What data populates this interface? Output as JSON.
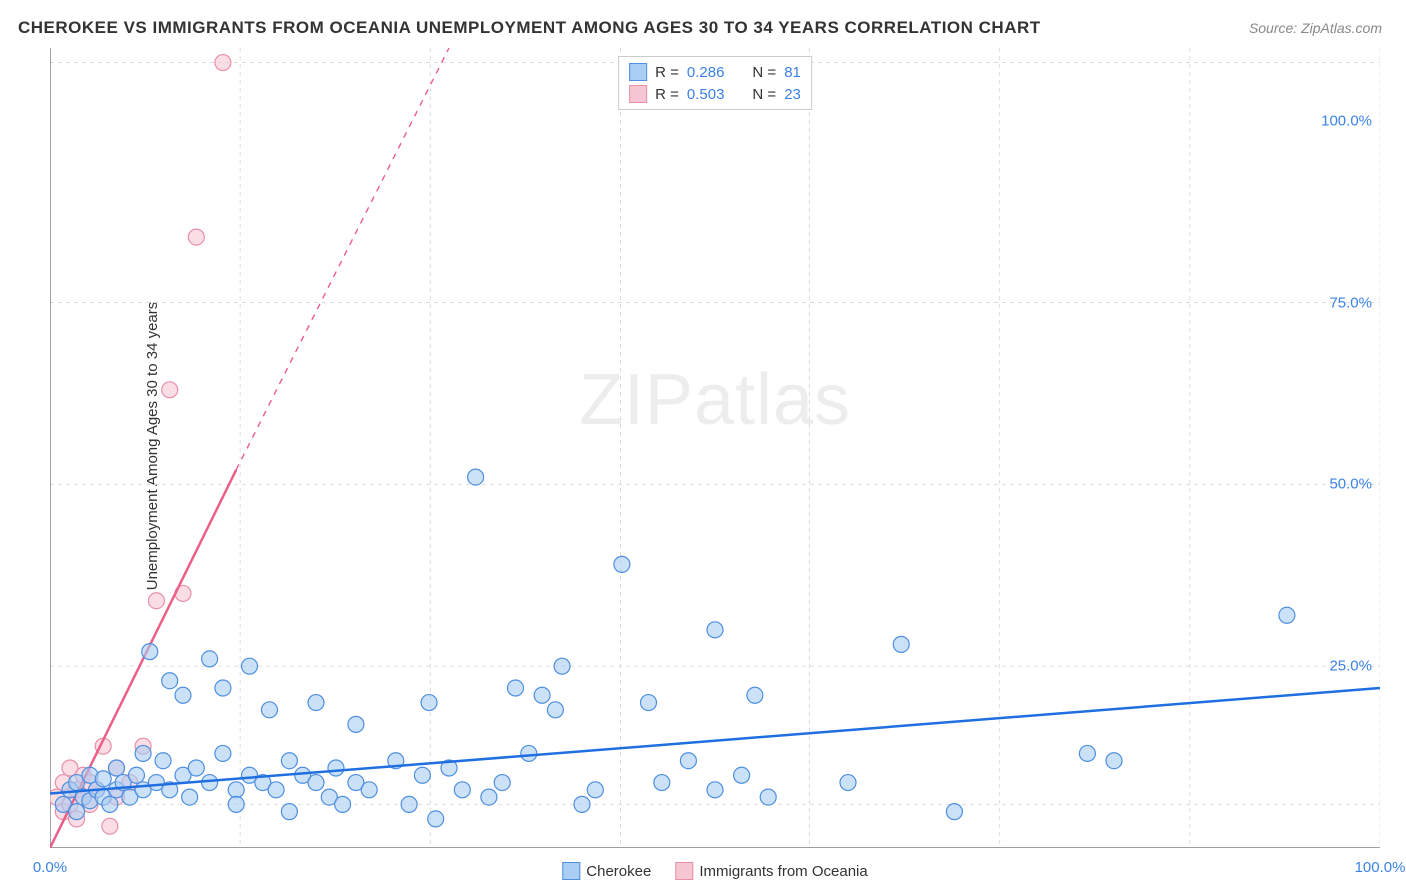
{
  "title": "CHEROKEE VS IMMIGRANTS FROM OCEANIA UNEMPLOYMENT AMONG AGES 30 TO 34 YEARS CORRELATION CHART",
  "source": "Source: ZipAtlas.com",
  "yaxis_label": "Unemployment Among Ages 30 to 34 years",
  "watermark": "ZIPatlas",
  "chart": {
    "type": "scatter",
    "xlim": [
      0,
      100
    ],
    "ylim": [
      0,
      110
    ],
    "xtick_labels": [
      {
        "v": 0,
        "label": "0.0%"
      },
      {
        "v": 100,
        "label": "100.0%"
      }
    ],
    "ytick_labels": [
      {
        "v": 25,
        "label": "25.0%"
      },
      {
        "v": 50,
        "label": "50.0%"
      },
      {
        "v": 75,
        "label": "75.0%"
      },
      {
        "v": 100,
        "label": "100.0%"
      }
    ],
    "grid_y": [
      6,
      25,
      50,
      75,
      108
    ],
    "grid_x": [
      14.3,
      28.6,
      42.9,
      57.1,
      71.4,
      85.7,
      100
    ],
    "grid_color": "#dddddd",
    "axis_color": "#666666",
    "background_color": "#ffffff",
    "tick_label_color": "#3b82e6",
    "marker_radius": 8,
    "marker_stroke_width": 1.2,
    "line_width_solid": 2.5,
    "line_width_trend": 1.4,
    "series": {
      "cherokee": {
        "label": "Cherokee",
        "fill": "#a9cdf3",
        "stroke": "#4f8fe0",
        "line_color": "#1f6fe0",
        "R": "0.286",
        "N": "81",
        "trend": {
          "x1": 0,
          "y1": 7.5,
          "x2": 100,
          "y2": 22,
          "dashed": false
        },
        "points": [
          [
            1,
            6
          ],
          [
            1.5,
            8
          ],
          [
            2,
            5
          ],
          [
            2,
            9
          ],
          [
            2.5,
            7
          ],
          [
            3,
            6.5
          ],
          [
            3,
            10
          ],
          [
            3.5,
            8
          ],
          [
            4,
            7
          ],
          [
            4,
            9.5
          ],
          [
            4.5,
            6
          ],
          [
            5,
            11
          ],
          [
            5,
            8
          ],
          [
            5.5,
            9
          ],
          [
            6,
            7
          ],
          [
            6.5,
            10
          ],
          [
            7,
            8
          ],
          [
            7,
            13
          ],
          [
            7.5,
            27
          ],
          [
            8,
            9
          ],
          [
            8.5,
            12
          ],
          [
            9,
            8
          ],
          [
            9,
            23
          ],
          [
            10,
            10
          ],
          [
            10,
            21
          ],
          [
            10.5,
            7
          ],
          [
            11,
            11
          ],
          [
            12,
            26
          ],
          [
            12,
            9
          ],
          [
            13,
            13
          ],
          [
            13,
            22
          ],
          [
            14,
            8
          ],
          [
            14,
            6
          ],
          [
            15,
            10
          ],
          [
            15,
            25
          ],
          [
            16,
            9
          ],
          [
            16.5,
            19
          ],
          [
            17,
            8
          ],
          [
            18,
            12
          ],
          [
            18,
            5
          ],
          [
            19,
            10
          ],
          [
            20,
            9
          ],
          [
            20,
            20
          ],
          [
            21,
            7
          ],
          [
            21.5,
            11
          ],
          [
            22,
            6
          ],
          [
            23,
            9
          ],
          [
            23,
            17
          ],
          [
            24,
            8
          ],
          [
            26,
            12
          ],
          [
            27,
            6
          ],
          [
            28,
            10
          ],
          [
            28.5,
            20
          ],
          [
            29,
            4
          ],
          [
            30,
            11
          ],
          [
            31,
            8
          ],
          [
            32,
            51
          ],
          [
            33,
            7
          ],
          [
            34,
            9
          ],
          [
            35,
            22
          ],
          [
            36,
            13
          ],
          [
            37,
            21
          ],
          [
            38,
            19
          ],
          [
            38.5,
            25
          ],
          [
            40,
            6
          ],
          [
            41,
            8
          ],
          [
            43,
            39
          ],
          [
            45,
            20
          ],
          [
            46,
            9
          ],
          [
            48,
            12
          ],
          [
            50,
            8
          ],
          [
            50,
            30
          ],
          [
            52,
            10
          ],
          [
            53,
            21
          ],
          [
            54,
            7
          ],
          [
            60,
            9
          ],
          [
            64,
            28
          ],
          [
            68,
            5
          ],
          [
            78,
            13
          ],
          [
            80,
            12
          ],
          [
            93,
            32
          ]
        ]
      },
      "oceania": {
        "label": "Immigrants from Oceania",
        "fill": "#f6c6d3",
        "stroke": "#e890a8",
        "line_color": "#ec5f88",
        "R": "0.503",
        "N": "23",
        "trend_solid": {
          "x1": 0,
          "y1": 0,
          "x2": 14,
          "y2": 52
        },
        "trend_dashed": {
          "x1": 14,
          "y1": 52,
          "x2": 30,
          "y2": 110
        },
        "points": [
          [
            0.5,
            7
          ],
          [
            1,
            5
          ],
          [
            1,
            9
          ],
          [
            1.5,
            6
          ],
          [
            1.5,
            11
          ],
          [
            2,
            8
          ],
          [
            2,
            4
          ],
          [
            2.5,
            10
          ],
          [
            2.5,
            7
          ],
          [
            3,
            9
          ],
          [
            3,
            6
          ],
          [
            3.5,
            8
          ],
          [
            4,
            14
          ],
          [
            4.5,
            3
          ],
          [
            5,
            11
          ],
          [
            5,
            7
          ],
          [
            6,
            9
          ],
          [
            7,
            14
          ],
          [
            8,
            34
          ],
          [
            9,
            63
          ],
          [
            10,
            35
          ],
          [
            11,
            84
          ],
          [
            13,
            108
          ]
        ]
      }
    }
  },
  "stats_legend": {
    "r_label": "R =",
    "n_label": "N ="
  }
}
